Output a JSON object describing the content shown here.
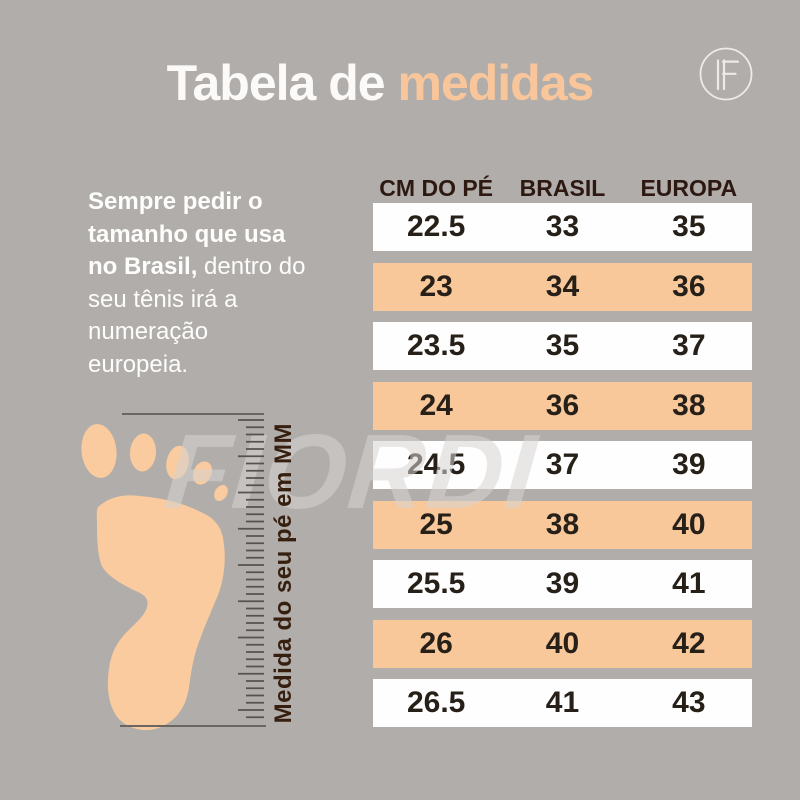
{
  "title": {
    "part1": "Tabela de",
    "part2": "medidas"
  },
  "logo": {
    "letter": "F"
  },
  "intro": {
    "lines": [
      {
        "b": "Sempre pedir o",
        "r": ""
      },
      {
        "b": "tamanho que usa",
        "r": ""
      },
      {
        "b": "no Brasil,",
        "r": " dentro do"
      },
      {
        "b": "",
        "r": "seu tênis irá a"
      },
      {
        "b": "",
        "r": "numeração"
      },
      {
        "b": "",
        "r": "europeia."
      }
    ]
  },
  "foot_ruler": {
    "label": "Medida do seu pé em MM"
  },
  "watermark": {
    "text": "FIORDI"
  },
  "size_table": {
    "headers": [
      "CM DO PÉ",
      "BRASIL",
      "EUROPA"
    ],
    "rows": [
      {
        "cm": "22.5",
        "brasil": "33",
        "europa": "35",
        "highlight": false
      },
      {
        "cm": "23",
        "brasil": "34",
        "europa": "36",
        "highlight": true
      },
      {
        "cm": "23.5",
        "brasil": "35",
        "europa": "37",
        "highlight": false
      },
      {
        "cm": "24",
        "brasil": "36",
        "europa": "38",
        "highlight": true
      },
      {
        "cm": "24.5",
        "brasil": "37",
        "europa": "39",
        "highlight": false
      },
      {
        "cm": "25",
        "brasil": "38",
        "europa": "40",
        "highlight": true
      },
      {
        "cm": "25.5",
        "brasil": "39",
        "europa": "41",
        "highlight": false
      },
      {
        "cm": "26",
        "brasil": "40",
        "europa": "42",
        "highlight": true
      },
      {
        "cm": "26.5",
        "brasil": "41",
        "europa": "43",
        "highlight": false
      }
    ]
  },
  "colors": {
    "background": "#b0adaa",
    "accent_peach": "#f8c89b",
    "row_white": "#fefefe",
    "number_text": "#262019",
    "header_text": "#2d1911",
    "title_white": "#fbfaf9",
    "label_brown": "#371f10"
  }
}
